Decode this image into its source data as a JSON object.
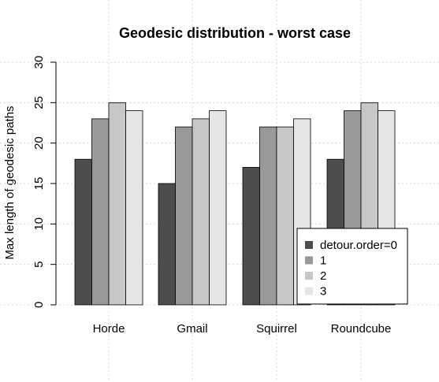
{
  "chart_data": {
    "type": "bar",
    "title": "Geodesic distribution - worst case",
    "xlabel": "",
    "ylabel": "Max length of geodesic paths",
    "categories": [
      "Horde",
      "Gmail",
      "Squirrel",
      "Roundcube"
    ],
    "series": [
      {
        "name": "detour.order=0",
        "color": "#4d4d4d",
        "values": [
          18,
          15,
          17,
          18
        ]
      },
      {
        "name": "1",
        "color": "#999999",
        "values": [
          23,
          22,
          22,
          24
        ]
      },
      {
        "name": "2",
        "color": "#c7c7c7",
        "values": [
          25,
          23,
          22,
          25
        ]
      },
      {
        "name": "3",
        "color": "#e6e6e6",
        "values": [
          24,
          24,
          23,
          24
        ]
      }
    ],
    "ylim": [
      0,
      30
    ],
    "yticks": [
      0,
      5,
      10,
      15,
      20,
      25,
      30
    ],
    "grid": true,
    "legend_position": "bottom-right"
  }
}
